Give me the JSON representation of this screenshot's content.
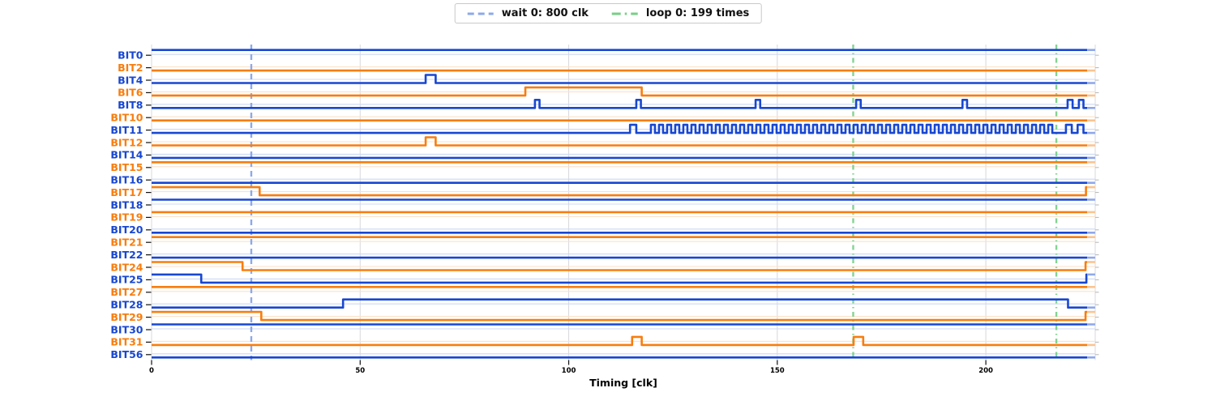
{
  "legend": {
    "items": [
      {
        "name": "wait",
        "label": "wait 0: 800 clk",
        "color": "#8da9e9",
        "dash": "8 5"
      },
      {
        "name": "loop",
        "label": "loop 0: 199 times",
        "color": "#77cf87",
        "dash": "11 5 2.5 5"
      }
    ]
  },
  "axis": {
    "xlabel": "Timing [clk]",
    "xticks": [
      0,
      50,
      100,
      150,
      200
    ],
    "xrange": [
      0,
      226.2
    ]
  },
  "chart_data": {
    "type": "digital-timing",
    "xlabel": "Timing [clk]",
    "xticks": [
      0,
      50,
      100,
      150,
      200
    ],
    "xrange": [
      0,
      226.2
    ],
    "grid": "vertical-at-xticks",
    "legend_position": "top-center",
    "markers": {
      "wait": {
        "label": "wait 0: 800 clk",
        "style": "dashed",
        "color": "#8da9e9",
        "positions": [
          23.9
        ]
      },
      "loop": {
        "label": "loop 0: 199 times",
        "style": "dashdot",
        "color": "#77cf87",
        "positions": [
          168.2,
          216.9
        ]
      }
    },
    "colors": {
      "blue": "#1847d1",
      "orange": "#f87d0e",
      "blue_faint": "#ccd9f4",
      "orange_faint": "#fbe2c9",
      "blue_stub": "#8fa8ea",
      "orange_stub": "#fac491",
      "grid": "#d8d8dd",
      "tick": "#111111",
      "right_tick": "#b5b5b5"
    },
    "signals": [
      {
        "name": "BIT0",
        "color": "blue",
        "high": [
          [
            0,
            226.2
          ]
        ]
      },
      {
        "name": "BIT2",
        "color": "orange",
        "high": []
      },
      {
        "name": "BIT4",
        "color": "blue",
        "high": [
          [
            65.7,
            68.1
          ]
        ]
      },
      {
        "name": "BIT6",
        "color": "orange",
        "high": [
          [
            89.6,
            117.5
          ]
        ]
      },
      {
        "name": "BIT8",
        "color": "blue",
        "high": [
          [
            91.9,
            93.0
          ],
          [
            116.2,
            117.3
          ],
          [
            144.8,
            145.9
          ],
          [
            168.9,
            170.0
          ],
          [
            194.4,
            195.5
          ],
          [
            219.6,
            220.8
          ],
          [
            222.3,
            223.4
          ]
        ]
      },
      {
        "name": "BIT10",
        "color": "orange",
        "high": []
      },
      {
        "name": "BIT11",
        "color": "blue",
        "high": [
          [
            114.7,
            116.2
          ],
          [
            219.2,
            220.6
          ],
          [
            222.0,
            223.4
          ]
        ],
        "osc": {
          "start": 119.7,
          "end": 216.4,
          "period": 1.944,
          "duty": 0.5
        }
      },
      {
        "name": "BIT12",
        "color": "orange",
        "high": [
          [
            65.7,
            68.1
          ]
        ]
      },
      {
        "name": "BIT14",
        "color": "blue",
        "high": []
      },
      {
        "name": "BIT15",
        "color": "orange",
        "high": [
          [
            0,
            226.2
          ]
        ]
      },
      {
        "name": "BIT16",
        "color": "blue",
        "high": []
      },
      {
        "name": "BIT17",
        "color": "orange",
        "high": [
          [
            0,
            25.9
          ],
          [
            224.0,
            226.2
          ]
        ]
      },
      {
        "name": "BIT18",
        "color": "blue",
        "high": [
          [
            0,
            226.2
          ]
        ]
      },
      {
        "name": "BIT19",
        "color": "orange",
        "high": [
          [
            0,
            226.2
          ]
        ]
      },
      {
        "name": "BIT20",
        "color": "blue",
        "high": []
      },
      {
        "name": "BIT21",
        "color": "orange",
        "high": [
          [
            0,
            226.2
          ]
        ]
      },
      {
        "name": "BIT22",
        "color": "blue",
        "high": []
      },
      {
        "name": "BIT24",
        "color": "orange",
        "high": [
          [
            0,
            21.8
          ],
          [
            223.9,
            226.2
          ]
        ]
      },
      {
        "name": "BIT25",
        "color": "blue",
        "high": [
          [
            0,
            11.9
          ],
          [
            224.1,
            226.2
          ]
        ]
      },
      {
        "name": "BIT27",
        "color": "orange",
        "high": [
          [
            0,
            226.2
          ]
        ]
      },
      {
        "name": "BIT28",
        "color": "blue",
        "high": [
          [
            45.9,
            219.7
          ]
        ]
      },
      {
        "name": "BIT29",
        "color": "orange",
        "high": [
          [
            0,
            26.3
          ],
          [
            223.9,
            226.2
          ]
        ]
      },
      {
        "name": "BIT30",
        "color": "blue",
        "high": [
          [
            0,
            226.2
          ]
        ]
      },
      {
        "name": "BIT31",
        "color": "orange",
        "high": [
          [
            115.2,
            117.5
          ],
          [
            168.3,
            170.6
          ]
        ]
      },
      {
        "name": "BIT56",
        "color": "blue",
        "high": []
      }
    ]
  }
}
